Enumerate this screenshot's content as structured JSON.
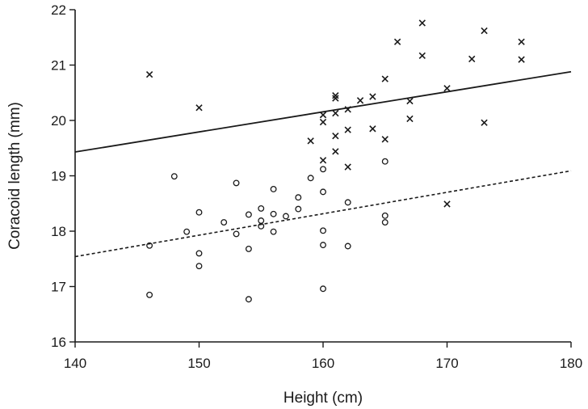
{
  "chart_data": {
    "type": "scatter",
    "title": "",
    "xlabel": "Height (cm)",
    "ylabel": "Coracoid length (mm)",
    "xlim": [
      140,
      180
    ],
    "ylim": [
      16,
      22
    ],
    "x_ticks": [
      140,
      150,
      160,
      170,
      180
    ],
    "y_ticks": [
      16,
      17,
      18,
      19,
      20,
      21,
      22
    ],
    "grid": false,
    "series": [
      {
        "name": "cross-markers",
        "marker": "x",
        "points": [
          [
            146,
            20.83
          ],
          [
            150,
            20.23
          ],
          [
            159,
            19.63
          ],
          [
            160,
            20.1
          ],
          [
            160,
            19.97
          ],
          [
            160,
            19.28
          ],
          [
            161,
            20.45
          ],
          [
            161,
            20.4
          ],
          [
            161,
            20.13
          ],
          [
            161,
            19.72
          ],
          [
            161,
            19.44
          ],
          [
            162,
            20.2
          ],
          [
            162,
            19.83
          ],
          [
            162,
            19.16
          ],
          [
            163,
            20.36
          ],
          [
            164,
            20.43
          ],
          [
            164,
            19.85
          ],
          [
            165,
            20.75
          ],
          [
            165,
            19.66
          ],
          [
            166,
            21.42
          ],
          [
            167,
            20.35
          ],
          [
            167,
            20.03
          ],
          [
            168,
            21.76
          ],
          [
            168,
            21.17
          ],
          [
            170,
            20.58
          ],
          [
            170,
            18.49
          ],
          [
            172,
            21.11
          ],
          [
            173,
            21.62
          ],
          [
            173,
            19.96
          ],
          [
            176,
            21.42
          ],
          [
            176,
            21.1
          ]
        ],
        "fit": {
          "style": "solid",
          "x": [
            140,
            180
          ],
          "y": [
            19.43,
            20.88
          ]
        }
      },
      {
        "name": "circle-markers",
        "marker": "o",
        "points": [
          [
            146,
            17.74
          ],
          [
            146,
            16.85
          ],
          [
            148,
            18.99
          ],
          [
            149,
            17.99
          ],
          [
            150,
            18.34
          ],
          [
            150,
            17.6
          ],
          [
            150,
            17.37
          ],
          [
            152,
            18.16
          ],
          [
            153,
            18.87
          ],
          [
            153,
            17.95
          ],
          [
            154,
            18.3
          ],
          [
            154,
            17.68
          ],
          [
            154,
            16.77
          ],
          [
            155,
            18.41
          ],
          [
            155,
            18.19
          ],
          [
            155,
            18.09
          ],
          [
            156,
            18.76
          ],
          [
            156,
            18.31
          ],
          [
            156,
            17.99
          ],
          [
            157,
            18.27
          ],
          [
            158,
            18.61
          ],
          [
            158,
            18.4
          ],
          [
            159,
            18.96
          ],
          [
            160,
            19.12
          ],
          [
            160,
            18.71
          ],
          [
            160,
            18.01
          ],
          [
            160,
            17.75
          ],
          [
            160,
            16.96
          ],
          [
            162,
            18.52
          ],
          [
            162,
            17.73
          ],
          [
            165,
            19.26
          ],
          [
            165,
            18.28
          ],
          [
            165,
            18.16
          ]
        ],
        "fit": {
          "style": "dashed",
          "x": [
            140,
            180
          ],
          "y": [
            17.54,
            19.09
          ]
        }
      }
    ]
  }
}
